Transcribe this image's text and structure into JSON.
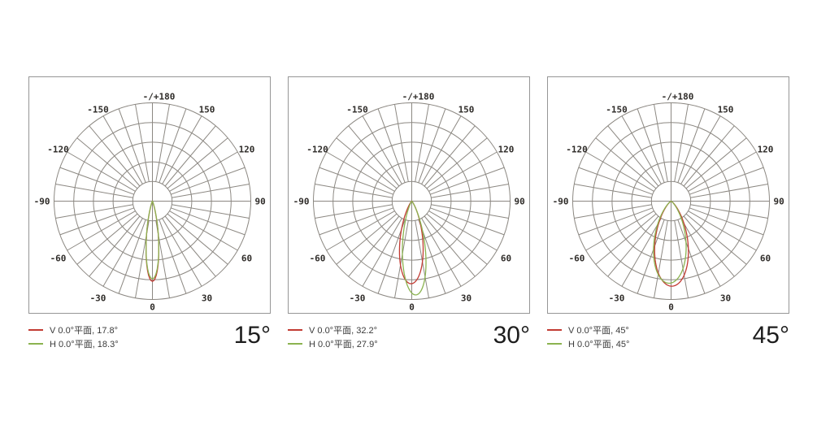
{
  "style": {
    "background": "#ffffff",
    "box_border": "#969696",
    "grid_color": "#8c8882",
    "tick_text_color": "#2e2b28",
    "red": "#c23b33",
    "green": "#8bb350"
  },
  "chart_data": [
    {
      "type": "polar",
      "beam_label": "15°",
      "polar_grid": {
        "top_label": "-/+180",
        "angle_tick_labels": [
          {
            "deg": 0,
            "text": "0"
          },
          {
            "deg": 30,
            "text": "30"
          },
          {
            "deg": -30,
            "text": "-30"
          },
          {
            "deg": 60,
            "text": "60"
          },
          {
            "deg": -60,
            "text": "-60"
          },
          {
            "deg": 90,
            "text": "90"
          },
          {
            "deg": -90,
            "text": "-90"
          },
          {
            "deg": 120,
            "text": "120"
          },
          {
            "deg": -120,
            "text": "-120"
          },
          {
            "deg": 150,
            "text": "150"
          },
          {
            "deg": -150,
            "text": "-150"
          }
        ],
        "ring_fractions": [
          0.2,
          0.4,
          0.6,
          0.8,
          1.0
        ],
        "spoke_step_deg": 10
      },
      "series": [
        {
          "name": "V plane",
          "label": "V 0.0°平面, 17.8°",
          "fwhm_deg": 17.8,
          "peak_r": 0.815,
          "tilt_deg": 0,
          "color": "#c23b33"
        },
        {
          "name": "H plane",
          "label": "H 0.0°平面, 18.3°",
          "fwhm_deg": 18.3,
          "peak_r": 0.79,
          "tilt_deg": 0,
          "color": "#8bb350"
        }
      ]
    },
    {
      "type": "polar",
      "beam_label": "30°",
      "polar_grid": {
        "top_label": "-/+180",
        "angle_tick_labels": [
          {
            "deg": 0,
            "text": "0"
          },
          {
            "deg": 30,
            "text": "30"
          },
          {
            "deg": -30,
            "text": "-30"
          },
          {
            "deg": 60,
            "text": "60"
          },
          {
            "deg": -60,
            "text": "-60"
          },
          {
            "deg": 90,
            "text": "90"
          },
          {
            "deg": -90,
            "text": "-90"
          },
          {
            "deg": 120,
            "text": "120"
          },
          {
            "deg": -120,
            "text": "-120"
          },
          {
            "deg": 150,
            "text": "150"
          },
          {
            "deg": -150,
            "text": "-150"
          }
        ],
        "ring_fractions": [
          0.2,
          0.4,
          0.6,
          0.8,
          1.0
        ],
        "spoke_step_deg": 10
      },
      "series": [
        {
          "name": "V plane",
          "label": "V 0.0°平面, 32.2°",
          "fwhm_deg": 32.2,
          "peak_r": 0.84,
          "tilt_deg": -0.5,
          "color": "#c23b33"
        },
        {
          "name": "H plane",
          "label": "H 0.0°平面, 27.9°",
          "fwhm_deg": 27.9,
          "peak_r": 0.955,
          "tilt_deg": 2.5,
          "color": "#8bb350"
        }
      ]
    },
    {
      "type": "polar",
      "beam_label": "45°",
      "polar_grid": {
        "top_label": "-/+180",
        "angle_tick_labels": [
          {
            "deg": 0,
            "text": "0"
          },
          {
            "deg": 30,
            "text": "30"
          },
          {
            "deg": -30,
            "text": "-30"
          },
          {
            "deg": 60,
            "text": "60"
          },
          {
            "deg": -60,
            "text": "-60"
          },
          {
            "deg": 90,
            "text": "90"
          },
          {
            "deg": -90,
            "text": "-90"
          },
          {
            "deg": 120,
            "text": "120"
          },
          {
            "deg": -120,
            "text": "-120"
          },
          {
            "deg": 150,
            "text": "150"
          },
          {
            "deg": -150,
            "text": "-150"
          }
        ],
        "ring_fractions": [
          0.2,
          0.4,
          0.6,
          0.8,
          1.0
        ],
        "spoke_step_deg": 10
      },
      "series": [
        {
          "name": "V plane",
          "label": "V 0.0°平面, 45°",
          "fwhm_deg": 45,
          "peak_r": 0.865,
          "tilt_deg": 0.5,
          "color": "#c23b33"
        },
        {
          "name": "H plane",
          "label": "H 0.0°平面, 45°",
          "fwhm_deg": 45,
          "peak_r": 0.835,
          "tilt_deg": -1.5,
          "color": "#8bb350"
        }
      ]
    }
  ]
}
